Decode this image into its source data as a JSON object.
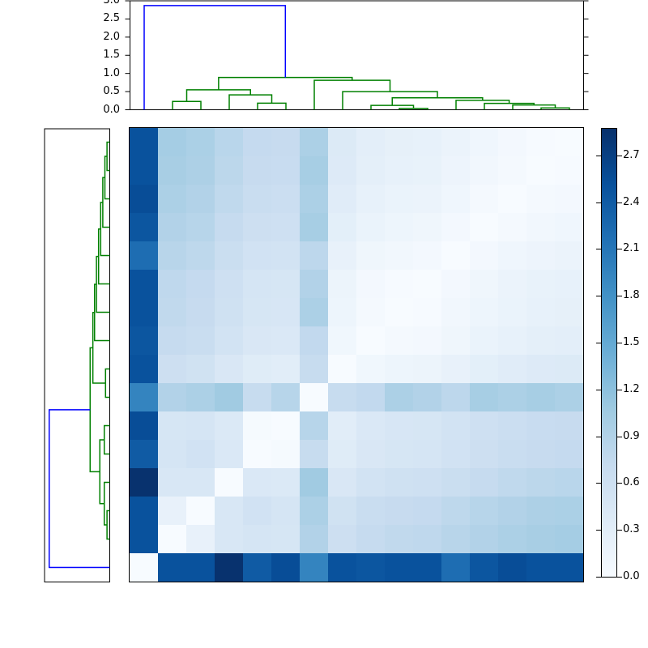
{
  "figure": {
    "kind": "hierarchical clustering heatmap (clustermap)",
    "background": "#ffffff"
  },
  "chart_data": {
    "type": "heatmap",
    "subtype": "clustermap-with-dendrograms",
    "title": "",
    "xlabel": "",
    "ylabel": "",
    "grid": false,
    "legend": "none",
    "size": 16,
    "vmin": 0,
    "vmax": 2.87,
    "matrix": [
      [
        2.5,
        1.01,
        0.96,
        0.83,
        0.73,
        0.71,
        0.95,
        0.39,
        0.29,
        0.25,
        0.23,
        0.17,
        0.11,
        0.06,
        0.02,
        0.0
      ],
      [
        2.5,
        0.99,
        0.94,
        0.81,
        0.71,
        0.69,
        1.0,
        0.37,
        0.27,
        0.23,
        0.21,
        0.15,
        0.09,
        0.04,
        0.0,
        0.02
      ],
      [
        2.55,
        0.95,
        0.9,
        0.77,
        0.67,
        0.65,
        0.95,
        0.33,
        0.23,
        0.19,
        0.17,
        0.11,
        0.05,
        0.0,
        0.04,
        0.06
      ],
      [
        2.45,
        0.9,
        0.85,
        0.72,
        0.62,
        0.6,
        1.0,
        0.28,
        0.18,
        0.14,
        0.12,
        0.06,
        0.0,
        0.05,
        0.09,
        0.11
      ],
      [
        2.2,
        0.84,
        0.79,
        0.66,
        0.56,
        0.54,
        0.8,
        0.22,
        0.12,
        0.08,
        0.06,
        0.0,
        0.06,
        0.11,
        0.15,
        0.17
      ],
      [
        2.5,
        0.78,
        0.73,
        0.6,
        0.5,
        0.48,
        0.9,
        0.16,
        0.06,
        0.02,
        0.0,
        0.06,
        0.12,
        0.17,
        0.21,
        0.23
      ],
      [
        2.5,
        0.76,
        0.71,
        0.58,
        0.48,
        0.46,
        0.95,
        0.14,
        0.04,
        0.0,
        0.02,
        0.08,
        0.14,
        0.19,
        0.23,
        0.25
      ],
      [
        2.45,
        0.72,
        0.67,
        0.54,
        0.44,
        0.42,
        0.75,
        0.1,
        0.0,
        0.04,
        0.06,
        0.12,
        0.18,
        0.23,
        0.27,
        0.29
      ],
      [
        2.5,
        0.62,
        0.57,
        0.44,
        0.34,
        0.32,
        0.7,
        0.0,
        0.1,
        0.14,
        0.16,
        0.22,
        0.28,
        0.33,
        0.37,
        0.39
      ],
      [
        1.95,
        0.9,
        0.95,
        1.05,
        0.7,
        0.85,
        0.0,
        0.7,
        0.75,
        0.95,
        0.9,
        0.8,
        1.0,
        0.95,
        1.0,
        0.95
      ],
      [
        2.55,
        0.48,
        0.5,
        0.4,
        0.03,
        0.0,
        0.85,
        0.32,
        0.42,
        0.46,
        0.48,
        0.54,
        0.6,
        0.65,
        0.69,
        0.71
      ],
      [
        2.4,
        0.5,
        0.55,
        0.42,
        0.0,
        0.03,
        0.7,
        0.34,
        0.44,
        0.48,
        0.5,
        0.56,
        0.62,
        0.67,
        0.71,
        0.73
      ],
      [
        2.85,
        0.45,
        0.45,
        0.0,
        0.42,
        0.4,
        1.05,
        0.44,
        0.54,
        0.58,
        0.6,
        0.66,
        0.72,
        0.77,
        0.81,
        0.83
      ],
      [
        2.5,
        0.22,
        0.0,
        0.45,
        0.55,
        0.5,
        0.95,
        0.57,
        0.67,
        0.71,
        0.73,
        0.79,
        0.85,
        0.9,
        0.94,
        0.96
      ],
      [
        2.5,
        0.0,
        0.22,
        0.45,
        0.5,
        0.48,
        0.9,
        0.62,
        0.72,
        0.76,
        0.78,
        0.84,
        0.9,
        0.95,
        0.99,
        1.01
      ],
      [
        0.0,
        2.5,
        2.5,
        2.85,
        2.4,
        2.55,
        1.95,
        2.5,
        2.45,
        2.5,
        2.5,
        2.2,
        2.45,
        2.55,
        2.5,
        2.5
      ]
    ],
    "colormap": {
      "name": "Blues",
      "stops": [
        {
          "t": 0.0,
          "hex": "#f7fbff"
        },
        {
          "t": 0.125,
          "hex": "#deebf7"
        },
        {
          "t": 0.25,
          "hex": "#c6dbef"
        },
        {
          "t": 0.375,
          "hex": "#9ecae1"
        },
        {
          "t": 0.5,
          "hex": "#6baed6"
        },
        {
          "t": 0.625,
          "hex": "#4292c6"
        },
        {
          "t": 0.75,
          "hex": "#2171b5"
        },
        {
          "t": 0.875,
          "hex": "#08519c"
        },
        {
          "t": 1.0,
          "hex": "#08306b"
        }
      ]
    },
    "colorbar": {
      "tick_labels": [
        "0.0",
        "0.3",
        "0.6",
        "0.9",
        "1.2",
        "1.5",
        "1.8",
        "2.1",
        "2.4",
        "2.7"
      ],
      "tick_values": [
        0,
        0.3,
        0.6,
        0.9,
        1.2,
        1.5,
        1.8,
        2.1,
        2.4,
        2.7
      ],
      "range": [
        0,
        2.87
      ]
    },
    "top_dendrogram": {
      "orientation": "top",
      "leaf_count": 16,
      "axis_tick_labels": [
        "0.0",
        "0.5",
        "1.0",
        "1.5",
        "2.0",
        "2.5",
        "3.0"
      ],
      "axis_tick_values": [
        0,
        0.5,
        1.0,
        1.5,
        2.0,
        2.5,
        3.0
      ],
      "axis_range": [
        0,
        3.0
      ],
      "link_color": "#008000",
      "root_color": "#0000ff",
      "links": [
        [
          1.5,
          0,
          2.5,
          0,
          0.23
        ],
        [
          4.5,
          0,
          5.5,
          0,
          0.18
        ],
        [
          3.5,
          0,
          5.0,
          0.18,
          0.41
        ],
        [
          2.0,
          0.23,
          4.25,
          0.41,
          0.55
        ],
        [
          9.5,
          0,
          10.5,
          0,
          0.035
        ],
        [
          8.5,
          0,
          10.0,
          0.035,
          0.12
        ],
        [
          14.5,
          0,
          15.5,
          0,
          0.05
        ],
        [
          13.5,
          0,
          15.0,
          0.05,
          0.13
        ],
        [
          12.5,
          0,
          14.25,
          0.13,
          0.175
        ],
        [
          11.5,
          0,
          13.375,
          0.175,
          0.26
        ],
        [
          9.25,
          0.12,
          12.4375,
          0.26,
          0.33
        ],
        [
          7.5,
          0,
          10.84375,
          0.33,
          0.5
        ],
        [
          6.5,
          0,
          9.171875,
          0.5,
          0.81
        ],
        [
          3.125,
          0.55,
          7.8359375,
          0.81,
          0.89
        ]
      ],
      "root_link": [
        0.5,
        0,
        5.48046875,
        0.89,
        2.87
      ]
    },
    "left_dendrogram": {
      "orientation": "left",
      "leaf_count": 16,
      "axis_range": [
        0,
        3.09
      ],
      "link_color": "#008000",
      "root_color": "#0000ff",
      "links": [
        [
          0.5,
          0,
          1.5,
          0,
          0.13
        ],
        [
          1.0,
          0.13,
          2.5,
          0,
          0.23
        ],
        [
          1.75,
          0.23,
          3.5,
          0,
          0.33
        ],
        [
          2.625,
          0.33,
          4.5,
          0,
          0.43
        ],
        [
          3.5625,
          0.43,
          5.5,
          0,
          0.53
        ],
        [
          4.53125,
          0.53,
          6.5,
          0,
          0.63
        ],
        [
          5.515625,
          0.63,
          7.5,
          0,
          0.72
        ],
        [
          8.5,
          0,
          9.5,
          0,
          0.2
        ],
        [
          6.5078125,
          0.72,
          9.0,
          0.2,
          0.8
        ],
        [
          10.5,
          0,
          11.5,
          0,
          0.26
        ],
        [
          13.5,
          0,
          14.5,
          0,
          0.13
        ],
        [
          12.5,
          0,
          14.0,
          0.13,
          0.26
        ],
        [
          11.0,
          0.26,
          13.25,
          0.26,
          0.47
        ],
        [
          7.75390625,
          0.8,
          12.125,
          0.47,
          0.93
        ]
      ],
      "root_link": [
        9.939453125,
        0.93,
        15.5,
        0,
        2.87
      ]
    }
  }
}
